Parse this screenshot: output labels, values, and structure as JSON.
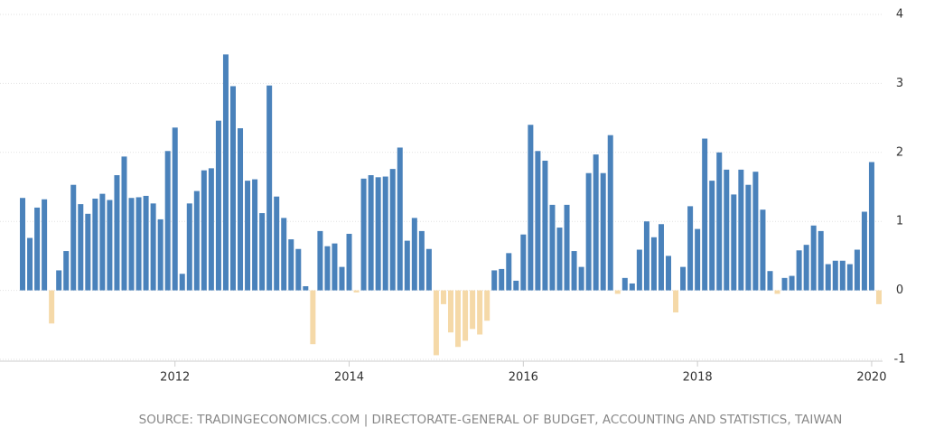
{
  "chart_data": {
    "type": "bar",
    "source": "SOURCE: TRADINGECONOMICS.COM | DIRECTORATE-GENERAL OF BUDGET, ACCOUNTING AND STATISTICS, TAIWAN",
    "categories": [
      null,
      null,
      null,
      null,
      null,
      null,
      null,
      null,
      null,
      null,
      null,
      null,
      null,
      null,
      null,
      null,
      null,
      null,
      null,
      null,
      null,
      "2012",
      null,
      null,
      null,
      null,
      null,
      null,
      null,
      null,
      null,
      null,
      null,
      null,
      null,
      null,
      null,
      null,
      null,
      null,
      null,
      null,
      null,
      null,
      null,
      "2014",
      null,
      null,
      null,
      null,
      null,
      null,
      null,
      null,
      null,
      null,
      null,
      null,
      null,
      null,
      null,
      null,
      null,
      null,
      null,
      null,
      null,
      null,
      null,
      "2016",
      null,
      null,
      null,
      null,
      null,
      null,
      null,
      null,
      null,
      null,
      null,
      null,
      null,
      null,
      null,
      null,
      null,
      null,
      null,
      null,
      null,
      null,
      null,
      "2018",
      null,
      null,
      null,
      null,
      null,
      null,
      null,
      null,
      null,
      null,
      null,
      null,
      null,
      null,
      null,
      null,
      null,
      null,
      null,
      null,
      null,
      null,
      null,
      "2020",
      null
    ],
    "values": [
      1.34,
      0.76,
      1.2,
      1.32,
      -0.48,
      0.29,
      0.57,
      1.53,
      1.25,
      1.11,
      1.33,
      1.4,
      1.31,
      1.67,
      1.94,
      1.34,
      1.35,
      1.37,
      1.26,
      1.03,
      2.02,
      2.36,
      0.24,
      1.26,
      1.44,
      1.74,
      1.77,
      2.46,
      3.42,
      2.96,
      2.35,
      1.59,
      1.61,
      1.12,
      2.97,
      1.36,
      1.05,
      0.74,
      0.6,
      0.06,
      -0.78,
      0.86,
      0.64,
      0.68,
      0.34,
      0.82,
      -0.03,
      1.62,
      1.67,
      1.64,
      1.65,
      1.76,
      2.07,
      0.72,
      1.05,
      0.86,
      0.6,
      -0.94,
      -0.2,
      -0.61,
      -0.82,
      -0.73,
      -0.56,
      -0.64,
      -0.44,
      0.29,
      0.31,
      0.54,
      0.14,
      0.81,
      2.4,
      2.02,
      1.88,
      1.24,
      0.91,
      1.24,
      0.57,
      0.34,
      1.7,
      1.97,
      1.7,
      2.25,
      -0.05,
      0.18,
      0.1,
      0.59,
      1.0,
      0.77,
      0.96,
      0.5,
      -0.32,
      0.34,
      1.22,
      0.89,
      2.2,
      1.59,
      2.0,
      1.75,
      1.39,
      1.75,
      1.53,
      1.72,
      1.17,
      0.28,
      -0.05,
      0.18,
      0.21,
      0.58,
      0.66,
      0.94,
      0.86,
      0.38,
      0.43,
      0.43,
      0.38,
      0.59,
      1.14,
      1.86,
      -0.2
    ],
    "color": "#4a82bb",
    "negative_color": "#f5d9a8",
    "ylim": [
      -1,
      4
    ],
    "yticks": [
      -1,
      0,
      1,
      2,
      3,
      4
    ],
    "grid": true
  }
}
